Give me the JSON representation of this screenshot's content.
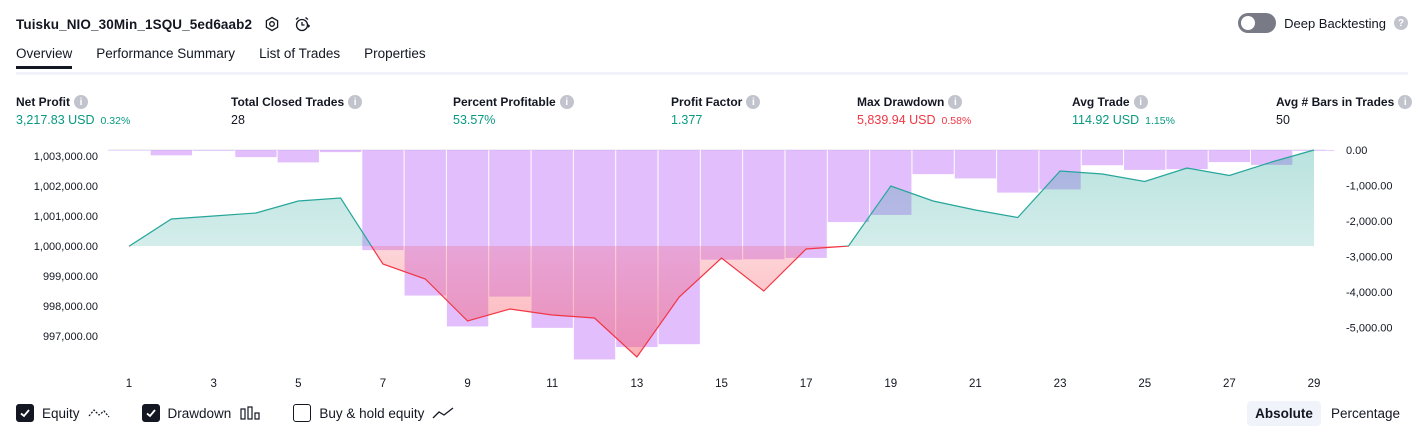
{
  "strategy": {
    "name": "Tuisku_NIO_30Min_1SQU_5ed6aab2"
  },
  "deep_backtesting": {
    "label": "Deep Backtesting",
    "enabled": false,
    "help": "?"
  },
  "tabs": [
    {
      "label": "Overview",
      "active": true
    },
    {
      "label": "Performance Summary",
      "active": false
    },
    {
      "label": "List of Trades",
      "active": false
    },
    {
      "label": "Properties",
      "active": false
    }
  ],
  "metrics": [
    {
      "label": "Net Profit",
      "value": "3,217.83 USD",
      "pct": "0.32%",
      "color": "green"
    },
    {
      "label": "Total Closed Trades",
      "value": "28",
      "pct": "",
      "color": "neutral"
    },
    {
      "label": "Percent Profitable",
      "value": "53.57%",
      "pct": "",
      "color": "green"
    },
    {
      "label": "Profit Factor",
      "value": "1.377",
      "pct": "",
      "color": "green"
    },
    {
      "label": "Max Drawdown",
      "value": "5,839.94 USD",
      "pct": "0.58%",
      "color": "red"
    },
    {
      "label": "Avg Trade",
      "value": "114.92 USD",
      "pct": "1.15%",
      "color": "green"
    },
    {
      "label": "Avg # Bars in Trades",
      "value": "50",
      "pct": "",
      "color": "neutral"
    }
  ],
  "chart_data": {
    "type": "line",
    "x": [
      1,
      2,
      3,
      4,
      5,
      6,
      7,
      8,
      9,
      10,
      11,
      12,
      13,
      14,
      15,
      16,
      17,
      18,
      19,
      20,
      21,
      22,
      23,
      24,
      25,
      26,
      27,
      28,
      29
    ],
    "x_ticks": [
      "1",
      "3",
      "5",
      "7",
      "9",
      "11",
      "13",
      "15",
      "17",
      "19",
      "21",
      "23",
      "25",
      "27",
      "29"
    ],
    "y_left_ticks": [
      "1,003,000.00",
      "1,002,000.00",
      "1,001,000.00",
      "1,000,000.00",
      "999,000.00",
      "998,000.00",
      "997,000.00"
    ],
    "y_left_range": [
      996250,
      1003200
    ],
    "y_right_ticks": [
      "0.00",
      "-1,000.00",
      "-2,000.00",
      "-3,000.00",
      "-4,000.00",
      "-5,000.00"
    ],
    "y_right_range": [
      -6200,
      0
    ],
    "baseline": 1000000,
    "series": [
      {
        "name": "Equity",
        "kind": "line-area",
        "color": "#26a69a",
        "values": [
          999990,
          1000900,
          1001000,
          1001100,
          1001500,
          1001600,
          999400,
          998900,
          997500,
          997900,
          997700,
          997600,
          996300,
          998300,
          999600,
          998500,
          999900,
          1000000,
          1002000,
          1001500,
          1001200,
          1000950,
          1002500,
          1002400,
          1002150,
          1002600,
          1002350,
          1002800,
          1003200
        ]
      },
      {
        "name": "Drawdown",
        "kind": "bars",
        "color": "#ce93fa",
        "values": [
          0,
          -150,
          -20,
          -200,
          -350,
          -60,
          -2820,
          -4100,
          -4970,
          -4130,
          -5010,
          -5900,
          -5550,
          -5470,
          -3090,
          -3080,
          -3040,
          -2030,
          -1830,
          -680,
          -800,
          -1200,
          -1110,
          -430,
          -560,
          -540,
          -340,
          -420,
          -20
        ]
      }
    ],
    "legend": [
      {
        "name": "Equity",
        "checked": true
      },
      {
        "name": "Drawdown",
        "checked": true
      },
      {
        "name": "Buy & hold equity",
        "checked": false
      }
    ]
  },
  "view_modes": [
    {
      "label": "Absolute",
      "active": true
    },
    {
      "label": "Percentage",
      "active": false
    }
  ],
  "colors": {
    "green": "#089981",
    "red": "#f23645",
    "equity_line": "#26a69a",
    "drawdown_bar": "#ce93fa",
    "loss_line": "#f23645"
  }
}
